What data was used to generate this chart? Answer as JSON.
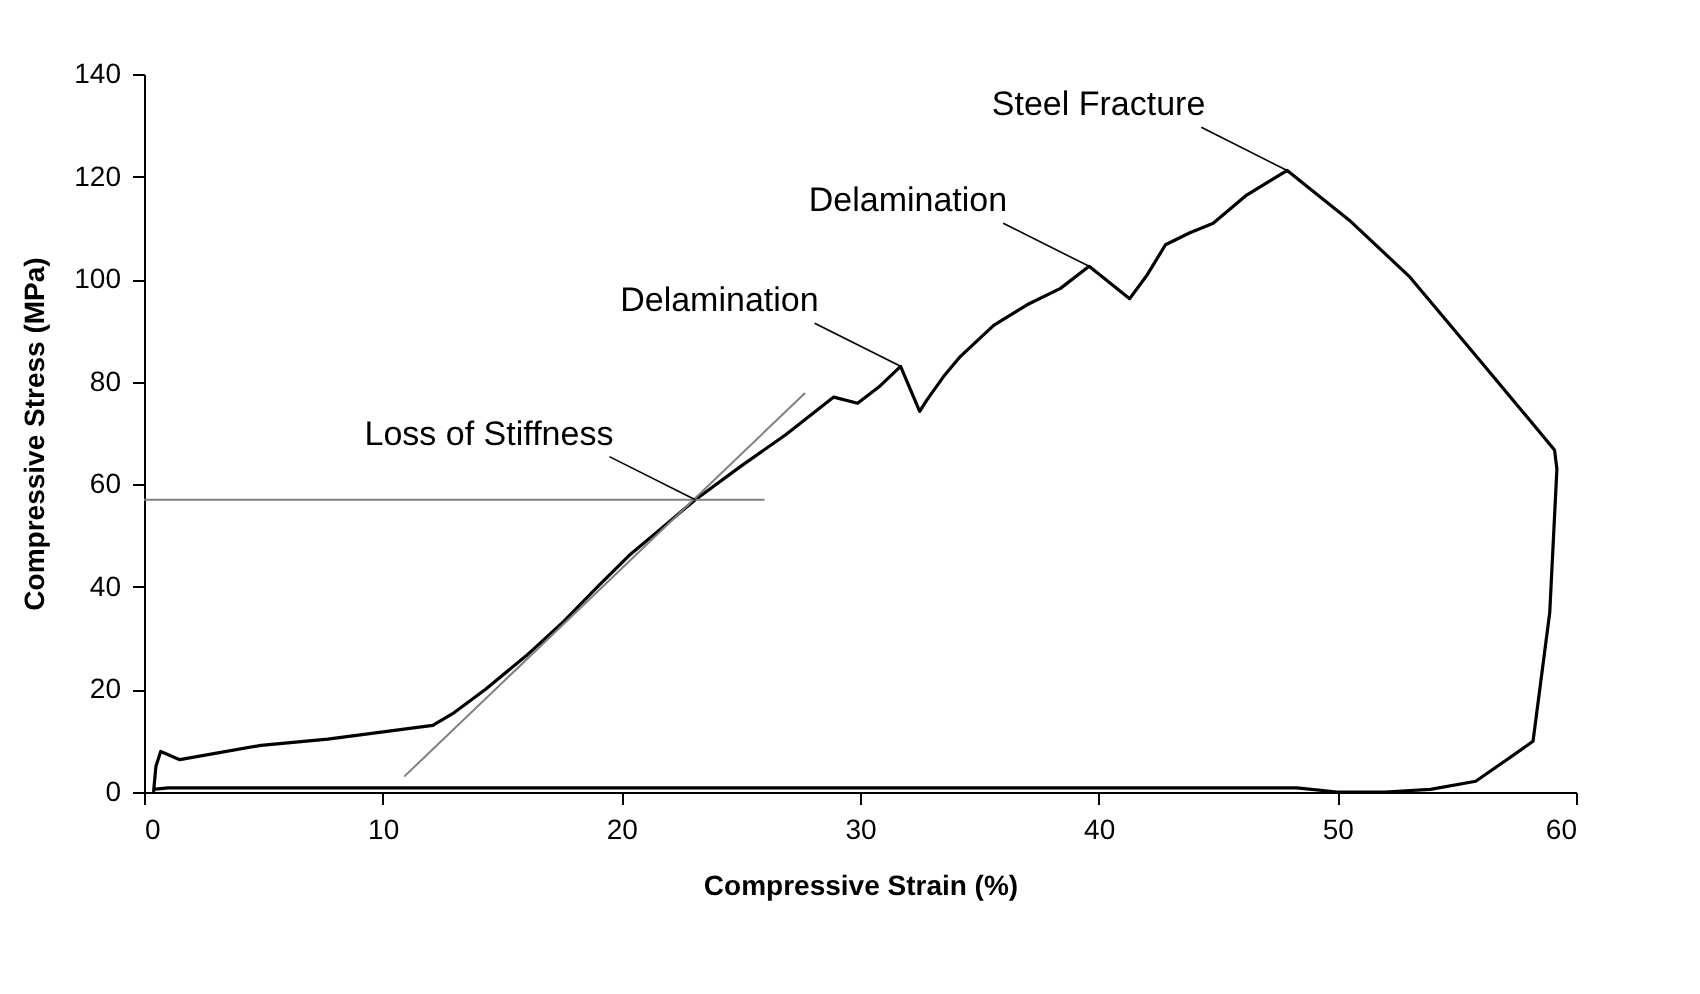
{
  "chart_data": {
    "type": "line",
    "xlabel": "Compressive Strain (%)",
    "ylabel": "Compressive Stress (MPa)",
    "xlim": [
      0,
      60
    ],
    "xticks": [
      0,
      10,
      20,
      30,
      40,
      50,
      60
    ],
    "ylim": [
      0,
      140
    ],
    "yticks": [
      0,
      20,
      40,
      60,
      80,
      100,
      120,
      140
    ],
    "grid": false,
    "marker": "none",
    "series": [
      {
        "color": "#000000",
        "x": [
          0.4,
          0.5,
          0.7,
          1.5,
          4.9,
          7.7,
          10.5,
          12.1,
          13,
          14.3,
          16,
          17.6,
          19,
          20.3,
          21.7,
          23.1,
          25,
          26.9,
          28.9,
          29.9,
          30.8,
          31.7,
          32.5,
          32.8,
          33.5,
          34.2,
          35.6,
          37,
          38.4,
          39.6,
          41.3,
          42,
          42.8,
          43.8,
          44.8,
          46.2,
          47.9,
          50.5,
          53,
          56,
          59.1,
          59.2,
          58.9,
          58.2,
          57.1,
          55.8,
          53.9,
          52,
          50,
          48.3,
          40,
          30,
          20,
          10,
          1,
          0.4
        ],
        "values": [
          0,
          5,
          7.9,
          6.3,
          9.1,
          10.3,
          12,
          13,
          15.5,
          20,
          26.5,
          33.3,
          40,
          46,
          51.5,
          57,
          63.5,
          69.7,
          77,
          75.8,
          79,
          83,
          74.2,
          76.4,
          81,
          84.9,
          91,
          95,
          98.2,
          102.5,
          96.2,
          100.6,
          106.7,
          109,
          110.9,
          116.4,
          121.2,
          111.5,
          100.6,
          84,
          66.7,
          63,
          35,
          9.9,
          6.3,
          2.1,
          0.5,
          0,
          0,
          0.8,
          0.8,
          0.8,
          0.8,
          0.8,
          0.8,
          0.5
        ]
      },
      {
        "color": "#808080",
        "x": [
          10.9,
          27.7
        ],
        "values": [
          3,
          77.8
        ]
      },
      {
        "color": "#808080",
        "x": [
          0,
          26
        ],
        "values": [
          57,
          57
        ]
      }
    ],
    "annotations": [
      {
        "text": "Loss of Stiffness",
        "x": 23.1,
        "y": 57
      },
      {
        "text": "Delamination",
        "x": 31.7,
        "y": 83
      },
      {
        "text": "Delamination",
        "x": 39.6,
        "y": 102.5
      },
      {
        "text": "Steel Fracture",
        "x": 47.9,
        "y": 121.2
      }
    ]
  }
}
